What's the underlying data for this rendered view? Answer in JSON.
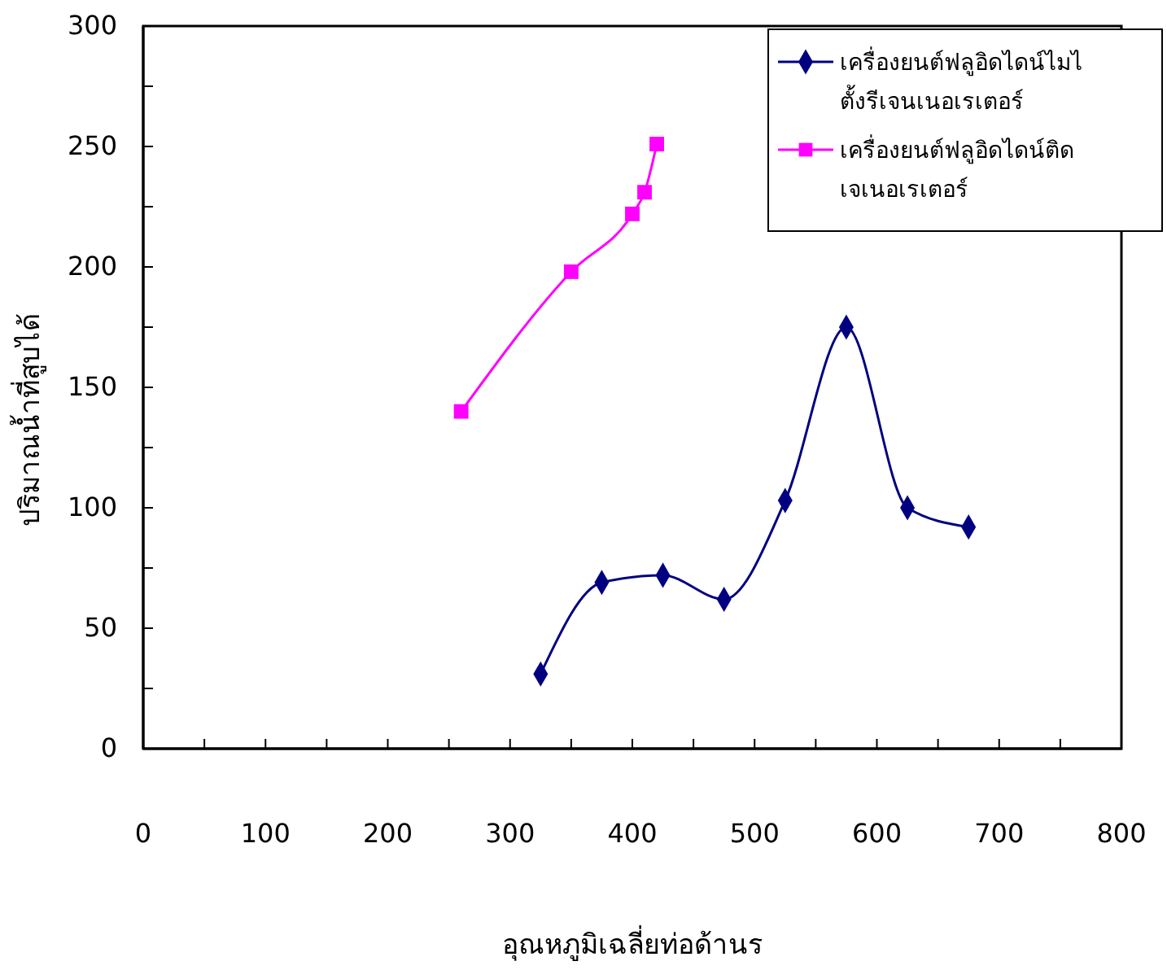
{
  "chart_data": {
    "type": "line",
    "xlabel": "อุณหภูมิเฉลี่ยท่อด้านร",
    "ylabel": "ปริมาณน้ำที่สูบได้",
    "xlim": [
      0,
      800
    ],
    "xticks": [
      0,
      {
        "value": 50,
        "label": null
      },
      100,
      {
        "value": 150,
        "label": null
      },
      200,
      {
        "value": 250,
        "label": null
      },
      300,
      {
        "value": 350,
        "label": null
      },
      400,
      {
        "value": 450,
        "label": null
      },
      500,
      {
        "value": 550,
        "label": null
      },
      600,
      {
        "value": 650,
        "label": null
      },
      700,
      {
        "value": 750,
        "label": null
      },
      800
    ],
    "ylim": [
      0,
      300
    ],
    "yticks": [
      0,
      {
        "value": 25,
        "label": null
      },
      50,
      {
        "value": 75,
        "label": null
      },
      100,
      {
        "value": 125,
        "label": null
      },
      150,
      {
        "value": 175,
        "label": null
      },
      200,
      {
        "value": 225,
        "label": null
      },
      250,
      {
        "value": 275,
        "label": null
      },
      300
    ],
    "grid": false,
    "legend": "top right",
    "series": [
      {
        "name": "เครื่องยนต์ฟลูอิดไดน์ไมไ ตั้งรีเจนเนอเรเตอร์",
        "color": "#000080",
        "marker": "diamond",
        "x": [
          325,
          375,
          425,
          475,
          525,
          575,
          625,
          675
        ],
        "values": [
          31,
          69,
          72,
          62,
          103,
          175,
          100,
          92
        ]
      },
      {
        "name": "เครื่องยนต์ฟลูอิดไดน์ติด เจเนอเรเตอร์",
        "color": "#ff00ff",
        "marker": "square",
        "x": [
          260,
          350,
          400,
          410,
          420
        ],
        "values": [
          140,
          198,
          222,
          231,
          251
        ]
      }
    ]
  }
}
